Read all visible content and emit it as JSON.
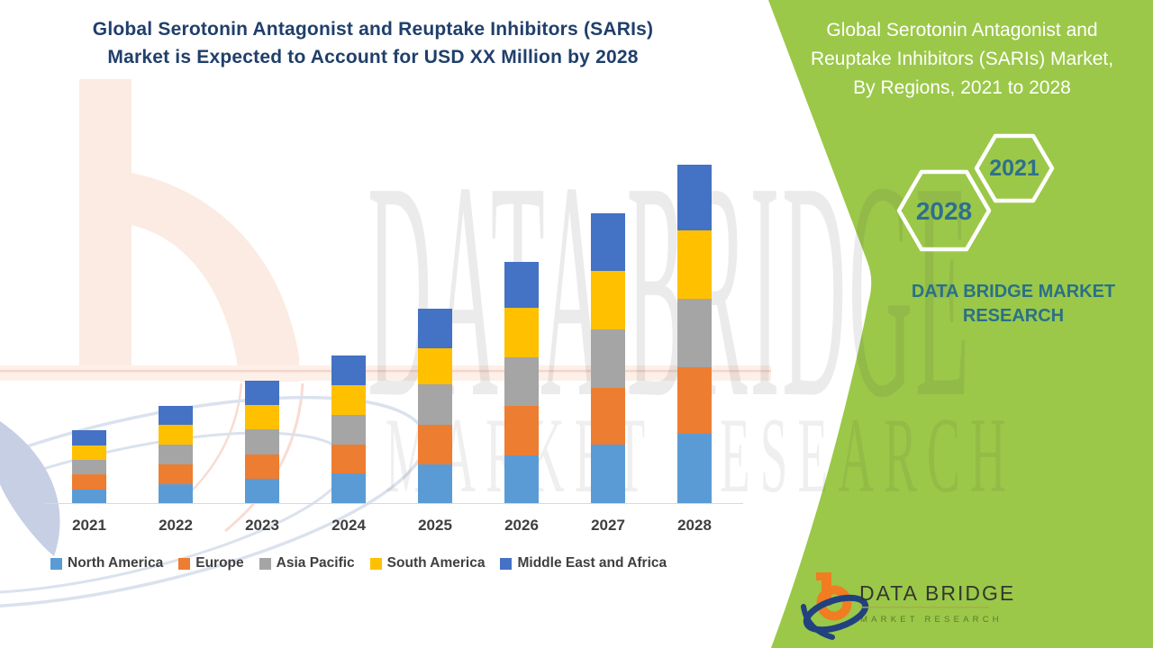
{
  "theme": {
    "green": "#9bc848",
    "teal_text": "#2a7088",
    "steel_blue": "#2e6f8e",
    "navy_title": "#203f6a",
    "text_dark": "#3f3f3f",
    "axis_line": "#d9d9d9",
    "logo_orange": "#f07d22",
    "logo_navy": "#21427f",
    "watermark_peach": "#fbe7dd",
    "watermark_blue": "#dbe2ee"
  },
  "header": {
    "title_lines": [
      "Global Serotonin Antagonist and Reuptake Inhibitors (SARIs)",
      "Market is Expected to Account for USD XX Million by 2028"
    ]
  },
  "side_panel": {
    "title_lines": [
      "Global Serotonin Antagonist and",
      "Reuptake Inhibitors (SARIs) Market,",
      "By Regions, 2021 to 2028"
    ],
    "badge_back_year": "2021",
    "badge_front_year": "2028",
    "brand_lines": [
      "DATA BRIDGE MARKET",
      "RESEARCH"
    ]
  },
  "chart_data": {
    "type": "bar",
    "stacked": true,
    "categories": [
      "2021",
      "2022",
      "2023",
      "2024",
      "2025",
      "2026",
      "2027",
      "2028"
    ],
    "series": [
      {
        "name": "North America",
        "color": "#5B9BD5",
        "values": [
          15,
          21,
          27,
          33,
          43,
          53,
          65,
          77
        ]
      },
      {
        "name": "Europe",
        "color": "#ED7D31",
        "values": [
          17,
          22,
          27,
          32,
          44,
          55,
          63,
          74
        ]
      },
      {
        "name": "Asia Pacific",
        "color": "#A5A5A5",
        "values": [
          16,
          22,
          28,
          33,
          45,
          54,
          65,
          76
        ]
      },
      {
        "name": "South America",
        "color": "#FFC000",
        "values": [
          16,
          22,
          27,
          33,
          40,
          55,
          65,
          76
        ]
      },
      {
        "name": "Middle East and Africa",
        "color": "#4472C4",
        "values": [
          17,
          21,
          27,
          33,
          44,
          51,
          64,
          73
        ]
      }
    ],
    "title": "",
    "xlabel": "",
    "ylabel": "",
    "value_axis_visible": false,
    "gridlines": false,
    "legend_position": "bottom",
    "units_note": "relative stacked heights; actual values shown as USD XX Million"
  },
  "watermark": {
    "big_text": "DATA BRIDGE",
    "sub_text": "MARKET RESEARCH"
  },
  "footer_logo": {
    "brand": "DATA BRIDGE",
    "sub": "MARKET RESEARCH"
  }
}
